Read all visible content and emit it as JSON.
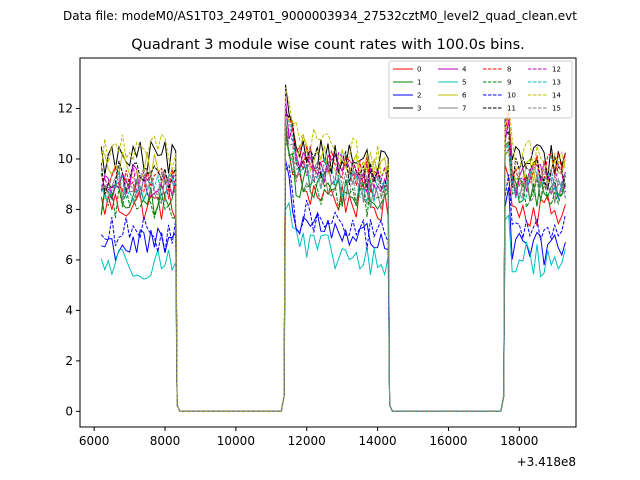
{
  "chart_data": {
    "type": "line",
    "suptitle": "Data file: modeM0/AS1T03_249T01_9000003934_27532cztM0_level2_quad_clean.evt",
    "title": "Quadrant 3 module wise count rates with 100.0s bins.",
    "xlabel": "",
    "ylabel": "",
    "x_offset_label": "+3.418e8",
    "xlim": [
      5600,
      19600
    ],
    "ylim": [
      -0.62,
      14.0
    ],
    "xticks": [
      6000,
      8000,
      10000,
      12000,
      14000,
      16000,
      18000
    ],
    "xtick_labels": [
      "6000",
      "8000",
      "10000",
      "12000",
      "14000",
      "16000",
      "18000"
    ],
    "yticks": [
      0,
      2,
      4,
      6,
      8,
      10,
      12
    ],
    "ytick_labels": [
      "0",
      "2",
      "4",
      "6",
      "8",
      "10",
      "12"
    ],
    "legend_loc": "upper right",
    "x_note": "x values are seconds relative to 3.418e8",
    "segments": [
      {
        "x_start": 6200,
        "x_end": 8300,
        "kind": "active"
      },
      {
        "x_start": 8300,
        "x_end": 11400,
        "kind": "gap_zero"
      },
      {
        "x_start": 11400,
        "x_end": 14300,
        "kind": "active"
      },
      {
        "x_start": 14300,
        "x_end": 17600,
        "kind": "gap_zero"
      },
      {
        "x_start": 17600,
        "x_end": 19300,
        "kind": "active"
      }
    ],
    "series": [
      {
        "name": "0",
        "color": "#ff0000",
        "dash": "solid",
        "levels": [
          8.2,
          9.0,
          8.0
        ]
      },
      {
        "name": "1",
        "color": "#008000",
        "dash": "solid",
        "levels": [
          8.4,
          9.3,
          8.8
        ]
      },
      {
        "name": "2",
        "color": "#0000ff",
        "dash": "solid",
        "levels": [
          6.6,
          7.7,
          6.4
        ]
      },
      {
        "name": "3",
        "color": "#000000",
        "dash": "solid",
        "levels": [
          10.0,
          10.6,
          9.9
        ]
      },
      {
        "name": "4",
        "color": "#bf00bf",
        "dash": "solid",
        "levels": [
          9.1,
          10.0,
          9.1
        ]
      },
      {
        "name": "5",
        "color": "#00bfbf",
        "dash": "solid",
        "levels": [
          5.9,
          6.7,
          6.0
        ]
      },
      {
        "name": "6",
        "color": "#bfbf00",
        "dash": "solid",
        "levels": [
          9.6,
          10.4,
          9.5
        ]
      },
      {
        "name": "7",
        "color": "#808080",
        "dash": "solid",
        "levels": [
          8.9,
          9.5,
          8.9
        ]
      },
      {
        "name": "8",
        "color": "#ff0000",
        "dash": "dashed",
        "levels": [
          9.1,
          10.2,
          9.6
        ]
      },
      {
        "name": "9",
        "color": "#008000",
        "dash": "dashed",
        "levels": [
          8.3,
          9.2,
          8.7
        ]
      },
      {
        "name": "10",
        "color": "#0000ff",
        "dash": "dashed",
        "levels": [
          7.0,
          7.9,
          7.1
        ]
      },
      {
        "name": "11",
        "color": "#000000",
        "dash": "dashed",
        "levels": [
          9.3,
          10.2,
          9.5
        ]
      },
      {
        "name": "12",
        "color": "#bf00bf",
        "dash": "dashed",
        "levels": [
          9.1,
          10.1,
          9.3
        ]
      },
      {
        "name": "13",
        "color": "#00bfbf",
        "dash": "dashed",
        "levels": [
          8.8,
          9.7,
          9.0
        ]
      },
      {
        "name": "14",
        "color": "#bfbf00",
        "dash": "dashed",
        "levels": [
          10.3,
          10.9,
          10.1
        ]
      },
      {
        "name": "15",
        "color": "#808080",
        "dash": "dashed",
        "levels": [
          9.0,
          9.6,
          8.9
        ]
      }
    ]
  }
}
